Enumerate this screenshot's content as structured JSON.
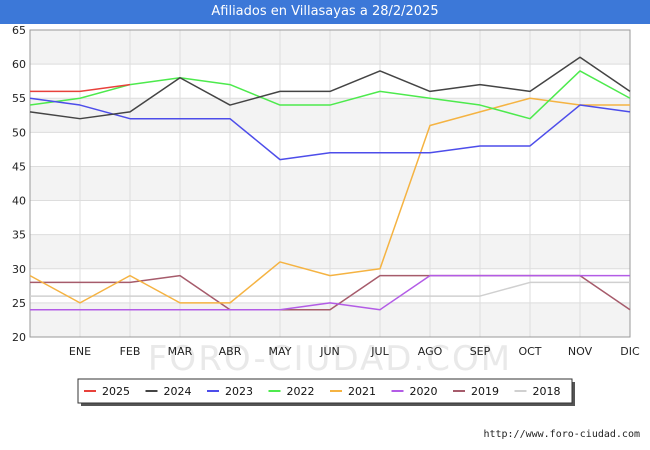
{
  "title": "Afiliados en Villasayas a 28/2/2025",
  "watermark": "FORO-CIUDAD.COM",
  "source_url": "http://www.foro-ciudad.com",
  "chart_data": {
    "type": "line",
    "title": "Afiliados en Villasayas a 28/2/2025",
    "x_ticks": [
      "",
      "ENE",
      "FEB",
      "MAR",
      "ABR",
      "MAY",
      "JUN",
      "JUL",
      "AGO",
      "SEP",
      "OCT",
      "NOV",
      "DIC"
    ],
    "ylim": [
      20,
      65
    ],
    "y_ticks": [
      20,
      25,
      30,
      35,
      40,
      45,
      50,
      55,
      60,
      65
    ],
    "grid": true,
    "legend_position": "bottom",
    "series": [
      {
        "name": "2025",
        "color": "#e8413b",
        "values": [
          56,
          56,
          57
        ]
      },
      {
        "name": "2024",
        "color": "#444444",
        "values": [
          53,
          52,
          53,
          58,
          54,
          56,
          56,
          59,
          56,
          57,
          56,
          61,
          56
        ]
      },
      {
        "name": "2023",
        "color": "#4d4dea",
        "values": [
          55,
          54,
          52,
          52,
          52,
          46,
          47,
          47,
          47,
          48,
          48,
          54,
          53
        ]
      },
      {
        "name": "2022",
        "color": "#4dea4d",
        "values": [
          54,
          55,
          57,
          58,
          57,
          54,
          54,
          56,
          55,
          54,
          52,
          59,
          55
        ]
      },
      {
        "name": "2021",
        "color": "#f5b342",
        "values": [
          29,
          25,
          29,
          25,
          25,
          31,
          29,
          30,
          51,
          53,
          55,
          54,
          54
        ]
      },
      {
        "name": "2020",
        "color": "#b35ce6",
        "values": [
          24,
          24,
          24,
          24,
          24,
          24,
          25,
          24,
          29,
          29,
          29,
          29,
          29
        ]
      },
      {
        "name": "2019",
        "color": "#a65b6b",
        "values": [
          28,
          28,
          28,
          29,
          24,
          24,
          24,
          29,
          29,
          29,
          29,
          29,
          24
        ]
      },
      {
        "name": "2018",
        "color": "#d0d0d0",
        "values": [
          26,
          26,
          26,
          26,
          26,
          26,
          26,
          26,
          26,
          26,
          28,
          28,
          28
        ]
      }
    ]
  }
}
